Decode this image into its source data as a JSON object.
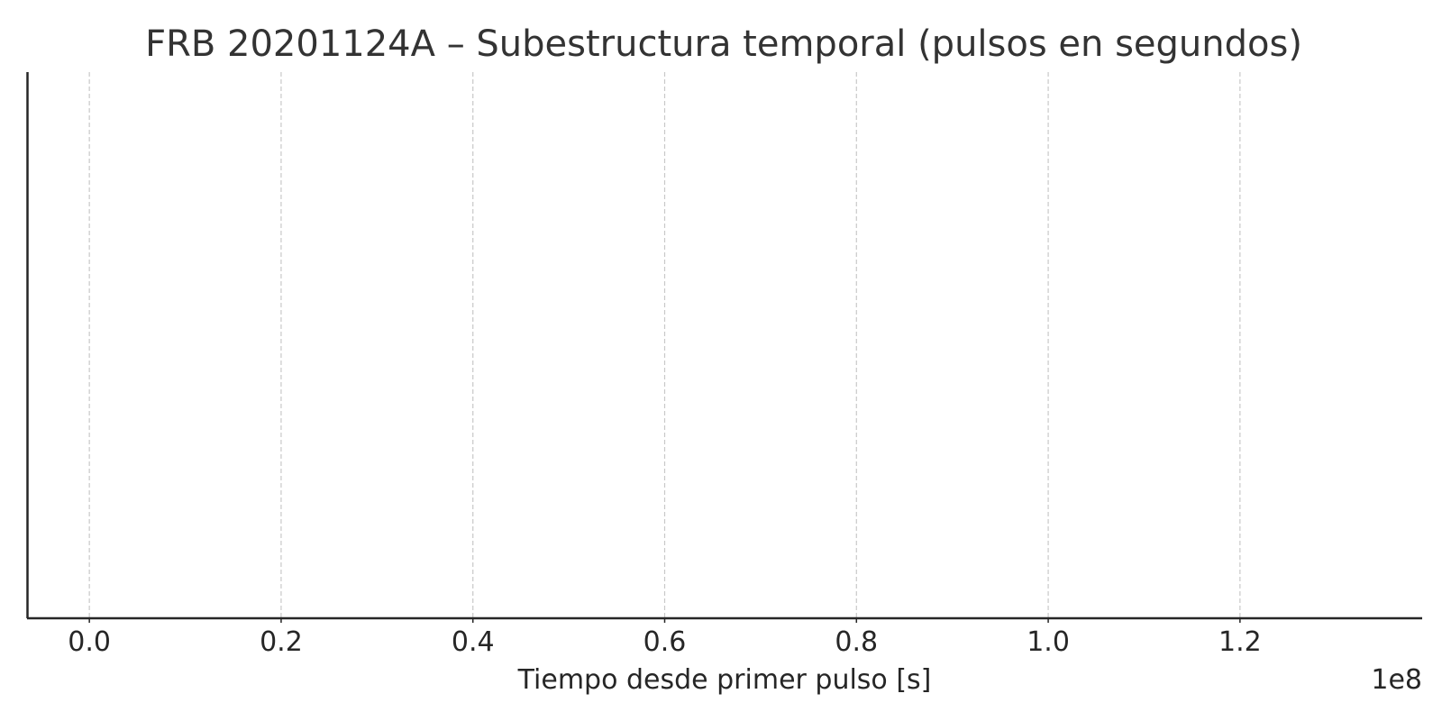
{
  "chart_data": {
    "type": "scatter",
    "title": "FRB 20201124A – Subestructura temporal (pulsos en segundos)",
    "xlabel": "Tiempo desde primer pulso [s]",
    "ylabel": "",
    "x_offset_label": "1e8",
    "x_scale_factor": 100000000,
    "xlim": [
      -0.065,
      1.39
    ],
    "x_ticks": [
      0.0,
      0.2,
      0.4,
      0.6,
      0.8,
      1.0,
      1.2
    ],
    "x_tick_labels": [
      "0.0",
      "0.2",
      "0.4",
      "0.6",
      "0.8",
      "1.0",
      "1.2"
    ],
    "y_ticks": [],
    "grid": "x-dashed",
    "series": [],
    "colors": {
      "axis": "#262626",
      "grid": "#c8c8c8",
      "title": "#333333",
      "text": "#262626"
    }
  }
}
